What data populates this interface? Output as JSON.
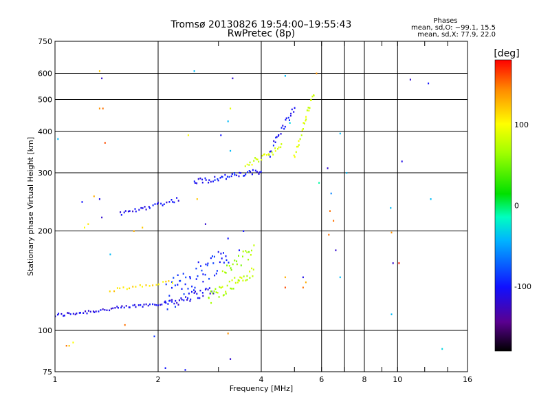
{
  "header": {
    "title_line1": "Tromsø 20130826 19:54:00–19:55:43",
    "title_line2": "RwPretec (8p)",
    "stats_heading": "Phases",
    "stats_line1": "mean, sd,O: −99.1, 15.5",
    "stats_line2": "mean, sd,X:  77.9, 22.0"
  },
  "colorbar": {
    "unit_label": "[deg]",
    "ticks": [
      {
        "value": 100,
        "label": "100"
      },
      {
        "value": 0,
        "label": "0"
      },
      {
        "value": -100,
        "label": "-100"
      }
    ],
    "range": [
      -180,
      180
    ]
  },
  "chart_data": {
    "type": "scatter",
    "title": "Tromsø 20130826 19:54:00–19:55:43",
    "subtitle": "RwPretec (8p)",
    "xlabel": "Frequency [MHz]",
    "ylabel": "Stationary phase Virtual Height [km]",
    "x_scale": "log",
    "y_scale": "log",
    "xlim": [
      1,
      16
    ],
    "ylim": [
      75,
      750
    ],
    "x_ticks": [
      {
        "value": 1,
        "label": "1"
      },
      {
        "value": 2,
        "label": "2"
      },
      {
        "value": 4,
        "label": "4"
      },
      {
        "value": 6,
        "label": "6"
      },
      {
        "value": 8,
        "label": "8"
      },
      {
        "value": 10,
        "label": "10"
      },
      {
        "value": 16,
        "label": "16"
      }
    ],
    "x_minor_ticks": [
      3,
      5,
      7,
      9,
      12,
      14
    ],
    "x_grid": [
      2,
      4,
      6,
      7,
      8,
      10
    ],
    "y_ticks": [
      {
        "value": 75,
        "label": "75"
      },
      {
        "value": 100,
        "label": "100"
      },
      {
        "value": 200,
        "label": "200"
      },
      {
        "value": 300,
        "label": "300"
      },
      {
        "value": 400,
        "label": "400"
      },
      {
        "value": 500,
        "label": "500"
      },
      {
        "value": 600,
        "label": "600"
      },
      {
        "value": 750,
        "label": "750"
      }
    ],
    "y_grid": [
      100,
      200,
      300,
      400,
      500,
      600
    ],
    "color_encoding": "phase (deg)",
    "traces": [
      {
        "name": "",
        "x_start": 1.0,
        "x_end": 2.2,
        "h_start": 111,
        "h_end": 122,
        "phase": -110,
        "count": 60,
        "jitter": 1.5
      },
      {
        "name": "",
        "x_start": 2.2,
        "x_end": 2.9,
        "h_start": 122,
        "h_end": 133,
        "phase": -110,
        "count": 30,
        "jitter": 4
      },
      {
        "name": "",
        "x_start": 1.55,
        "x_end": 2.3,
        "h_start": 225,
        "h_end": 250,
        "phase": -108,
        "count": 30,
        "jitter": 4
      },
      {
        "name": "",
        "x_start": 2.55,
        "x_end": 4.0,
        "h_start": 282,
        "h_end": 303,
        "phase": -100,
        "count": 45,
        "jitter": 6
      },
      {
        "name": "",
        "x_start": 4.2,
        "x_end": 5.0,
        "h_start": 340,
        "h_end": 470,
        "phase": -102,
        "count": 25,
        "jitter": 10
      },
      {
        "name": "",
        "x_start": 2.1,
        "x_end": 3.2,
        "h_start": 125,
        "h_end": 170,
        "phase": -95,
        "count": 55,
        "jitter": 14
      },
      {
        "name": "",
        "x_start": 2.8,
        "x_end": 3.8,
        "h_start": 125,
        "h_end": 150,
        "phase": 75,
        "count": 40,
        "jitter": 6
      },
      {
        "name": "",
        "x_start": 3.1,
        "x_end": 3.8,
        "h_start": 150,
        "h_end": 175,
        "phase": 65,
        "count": 22,
        "jitter": 7
      },
      {
        "name": "",
        "x_start": 3.6,
        "x_end": 4.6,
        "h_start": 315,
        "h_end": 360,
        "phase": 85,
        "count": 25,
        "jitter": 8
      },
      {
        "name": "",
        "x_start": 5.0,
        "x_end": 5.7,
        "h_start": 330,
        "h_end": 520,
        "phase": 90,
        "count": 25,
        "jitter": 10
      },
      {
        "name": "",
        "x_start": 1.45,
        "x_end": 2.2,
        "h_start": 132,
        "h_end": 140,
        "phase": 110,
        "count": 20,
        "jitter": 2
      }
    ],
    "points": [
      [
        1.02,
        380,
        -40
      ],
      [
        1.35,
        610,
        120
      ],
      [
        1.37,
        580,
        -120
      ],
      [
        1.35,
        470,
        140
      ],
      [
        1.38,
        470,
        150
      ],
      [
        1.4,
        370,
        160
      ],
      [
        1.3,
        255,
        130
      ],
      [
        1.35,
        250,
        -110
      ],
      [
        1.2,
        245,
        -100
      ],
      [
        1.37,
        220,
        -120
      ],
      [
        1.45,
        170,
        -40
      ],
      [
        1.1,
        90,
        120
      ],
      [
        1.08,
        90,
        150
      ],
      [
        1.13,
        92,
        100
      ],
      [
        1.95,
        96,
        -90
      ],
      [
        2.55,
        610,
        -40
      ],
      [
        3.3,
        580,
        -120
      ],
      [
        3.25,
        470,
        90
      ],
      [
        3.2,
        430,
        -40
      ],
      [
        3.05,
        390,
        -100
      ],
      [
        3.25,
        350,
        -40
      ],
      [
        4.7,
        590,
        -40
      ],
      [
        4.85,
        425,
        -30
      ],
      [
        5.8,
        600,
        140
      ],
      [
        5.9,
        280,
        -10
      ],
      [
        6.25,
        310,
        -120
      ],
      [
        6.35,
        230,
        150
      ],
      [
        6.4,
        260,
        -60
      ],
      [
        6.5,
        215,
        150
      ],
      [
        6.8,
        395,
        -40
      ],
      [
        7.1,
        300,
        -40
      ],
      [
        6.6,
        175,
        -120
      ],
      [
        6.3,
        195,
        150
      ],
      [
        5.3,
        145,
        -110
      ],
      [
        5.3,
        135,
        150
      ],
      [
        5.4,
        140,
        130
      ],
      [
        4.7,
        145,
        130
      ],
      [
        4.7,
        135,
        160
      ],
      [
        6.8,
        145,
        -40
      ],
      [
        9.55,
        235,
        -40
      ],
      [
        9.6,
        198,
        140
      ],
      [
        9.7,
        160,
        -120
      ],
      [
        10.1,
        160,
        175
      ],
      [
        9.6,
        112,
        -40
      ],
      [
        10.3,
        325,
        -110
      ],
      [
        10.9,
        575,
        -120
      ],
      [
        12.3,
        560,
        -100
      ],
      [
        12.5,
        250,
        -40
      ],
      [
        13.5,
        88,
        -30
      ],
      [
        3.25,
        82,
        -120
      ],
      [
        2.1,
        77,
        -100
      ],
      [
        2.4,
        76,
        -100
      ],
      [
        3.2,
        98,
        140
      ],
      [
        1.6,
        104,
        150
      ],
      [
        1.7,
        200,
        130
      ],
      [
        1.8,
        205,
        120
      ],
      [
        1.25,
        210,
        110
      ],
      [
        1.22,
        205,
        100
      ],
      [
        2.45,
        390,
        100
      ],
      [
        2.6,
        250,
        120
      ],
      [
        3.45,
        175,
        -100
      ],
      [
        3.2,
        190,
        -100
      ],
      [
        3.55,
        200,
        -100
      ],
      [
        2.75,
        210,
        -120
      ]
    ]
  }
}
